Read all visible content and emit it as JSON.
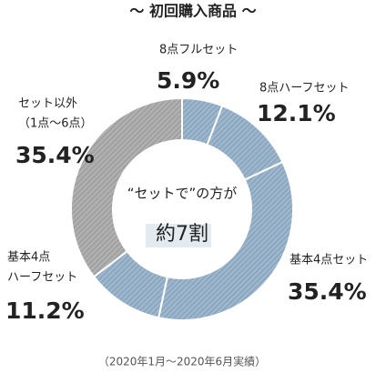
{
  "chart_data": {
    "type": "donut",
    "title": "～ 初回購入商品 ～",
    "categories": [
      [
        "8点フルセット"
      ],
      [
        "8点ハーフセット"
      ],
      [
        "基本4点セット"
      ],
      [
        "基本4点",
        "ハーフセット"
      ],
      [
        "セット以外",
        "（1点～6点）"
      ]
    ],
    "values": [
      5.9,
      12.1,
      35.4,
      11.2,
      35.4
    ],
    "value_labels": [
      "5.9%",
      "12.1%",
      "35.4%",
      "11.2%",
      "35.4%"
    ],
    "colors": [
      "#8eaac2",
      "#8eaac2",
      "#8eaac2",
      "#8eaac2",
      "#a3a3a3"
    ],
    "annotations": [
      "“セットで”の方が",
      "約7割"
    ],
    "footnote": "（2020年1月～2020年6月実績）"
  }
}
